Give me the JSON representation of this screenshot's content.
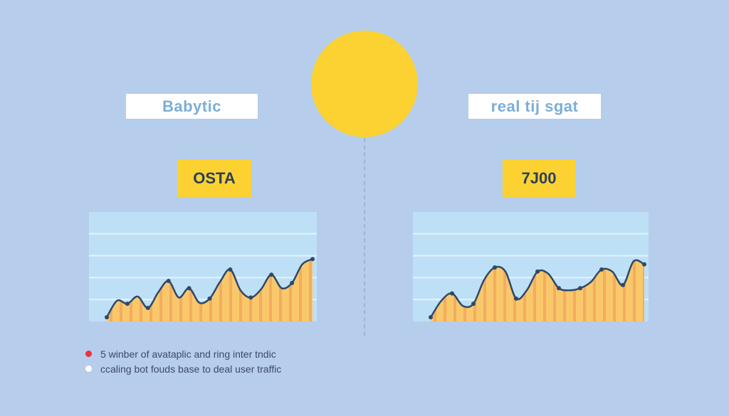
{
  "colors": {
    "background": "#b6cdec",
    "sun": "#fbd232",
    "panel": "#bde0f7",
    "area_fill": "#f9c86a",
    "stripe": "#f2a05c",
    "line": "#2f4968",
    "gridline": "#e6f3fc"
  },
  "chart_data": [
    {
      "type": "area",
      "label": "Babytic",
      "value_label": "OSTA",
      "x": [
        0,
        1,
        2,
        3,
        4,
        5,
        6,
        7,
        8,
        9,
        10,
        11,
        12,
        13,
        14,
        15,
        16,
        17,
        18,
        19,
        20
      ],
      "values": [
        4,
        20,
        17,
        24,
        13,
        28,
        39,
        23,
        32,
        18,
        22,
        38,
        50,
        30,
        23,
        31,
        45,
        32,
        37,
        55,
        60
      ],
      "ylim": [
        0,
        100
      ],
      "grid": true
    },
    {
      "type": "area",
      "label": "real tij sgat",
      "value_label": "7J00",
      "x": [
        0,
        1,
        2,
        3,
        4,
        5,
        6,
        7,
        8,
        9,
        10,
        11,
        12,
        13,
        14,
        15,
        16,
        17,
        18,
        19,
        20
      ],
      "values": [
        4,
        20,
        27,
        15,
        17,
        40,
        52,
        48,
        22,
        30,
        48,
        46,
        32,
        30,
        32,
        38,
        50,
        48,
        35,
        58,
        55
      ],
      "ylim": [
        0,
        100
      ],
      "grid": true
    }
  ],
  "legend": {
    "items": [
      {
        "text": "5 winber of avataplic and ring inter tndic",
        "color": "#e8343a"
      },
      {
        "text": "ccaling bot fouds base to deal user traffic",
        "color": "#ffffff"
      }
    ]
  }
}
